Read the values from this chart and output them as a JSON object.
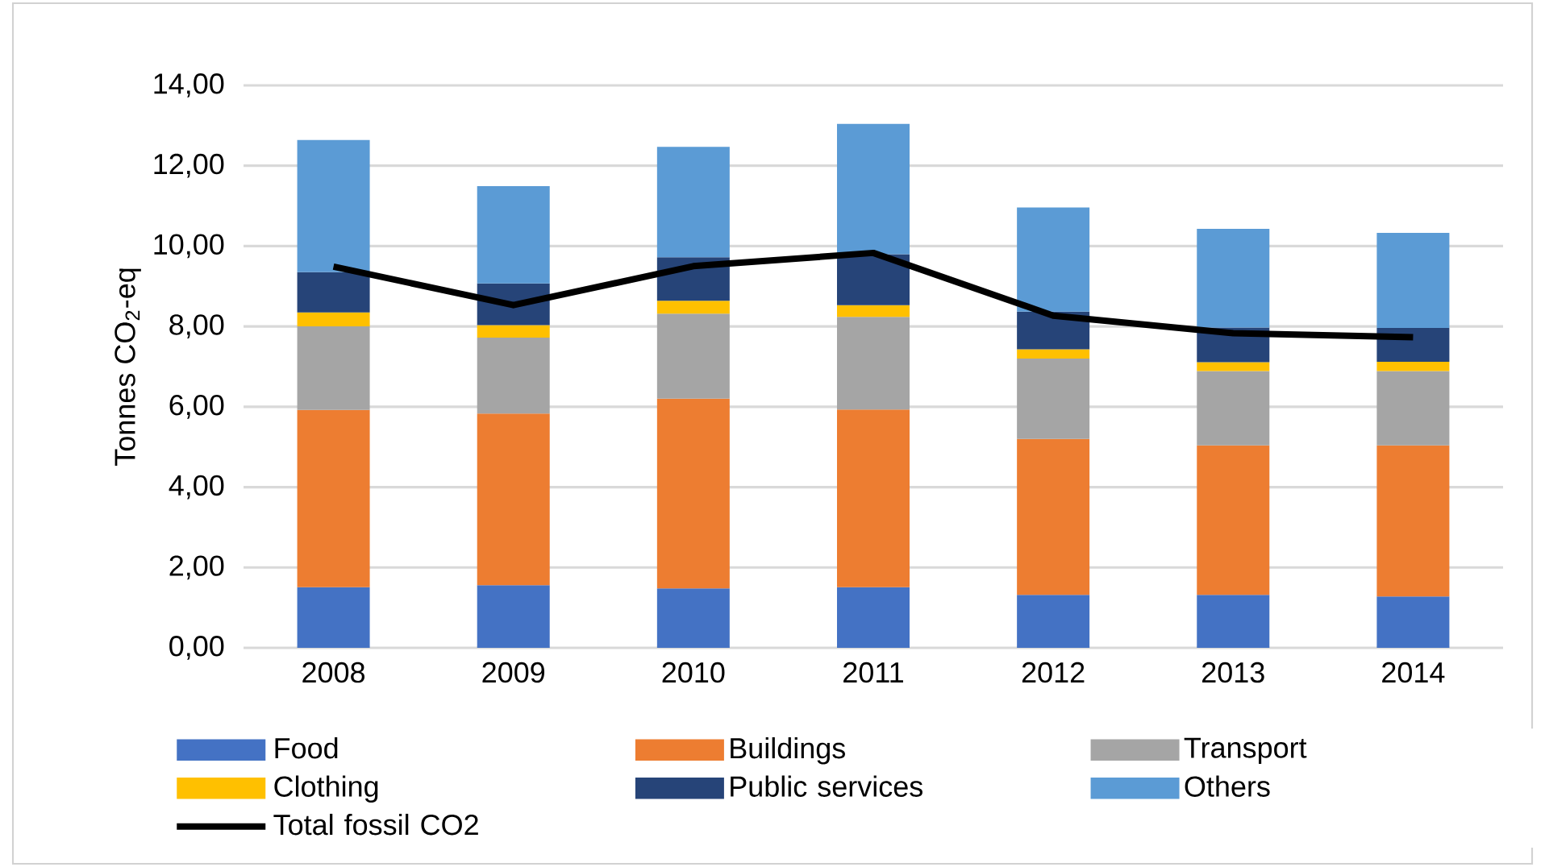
{
  "chart_data": {
    "type": "bar",
    "stacked": true,
    "categories": [
      "2008",
      "2009",
      "2010",
      "2011",
      "2012",
      "2013",
      "2014"
    ],
    "series": [
      {
        "name": "Food",
        "color": "#4472c4",
        "values": [
          1.51,
          1.56,
          1.48,
          1.51,
          1.32,
          1.32,
          1.28
        ]
      },
      {
        "name": "Buildings",
        "color": "#ed7d31",
        "values": [
          4.41,
          4.27,
          4.72,
          4.42,
          3.88,
          3.72,
          3.76
        ]
      },
      {
        "name": "Transport",
        "color": "#a5a5a5",
        "values": [
          2.08,
          1.89,
          2.12,
          2.31,
          2.0,
          1.85,
          1.85
        ]
      },
      {
        "name": "Clothing",
        "color": "#ffc000",
        "values": [
          0.35,
          0.31,
          0.32,
          0.29,
          0.23,
          0.22,
          0.23
        ]
      },
      {
        "name": "Public services",
        "color": "#264478",
        "values": [
          1.0,
          1.04,
          1.08,
          1.27,
          0.94,
          0.86,
          0.84
        ]
      },
      {
        "name": "Others",
        "color": "#5b9bd5",
        "values": [
          3.29,
          2.42,
          2.75,
          3.24,
          2.59,
          2.46,
          2.37
        ]
      },
      {
        "name": "Total fossil CO2",
        "type": "line",
        "color": "#000000",
        "values": [
          9.49,
          8.53,
          9.5,
          9.83,
          8.27,
          7.83,
          7.73
        ]
      }
    ],
    "ylabel": "Tonnes CO$_{2}$-eq",
    "ylim": [
      0,
      14
    ],
    "yticks": [
      {
        "value": 0,
        "label": "0,00"
      },
      {
        "value": 2,
        "label": "2,00"
      },
      {
        "value": 4,
        "label": "4,00"
      },
      {
        "value": 6,
        "label": "6,00"
      },
      {
        "value": 8,
        "label": "8,00"
      },
      {
        "value": 10,
        "label": "10,00"
      },
      {
        "value": 12,
        "label": "12,00"
      },
      {
        "value": 14,
        "label": "14,00"
      }
    ],
    "grid": "y",
    "legend": "bottom"
  }
}
